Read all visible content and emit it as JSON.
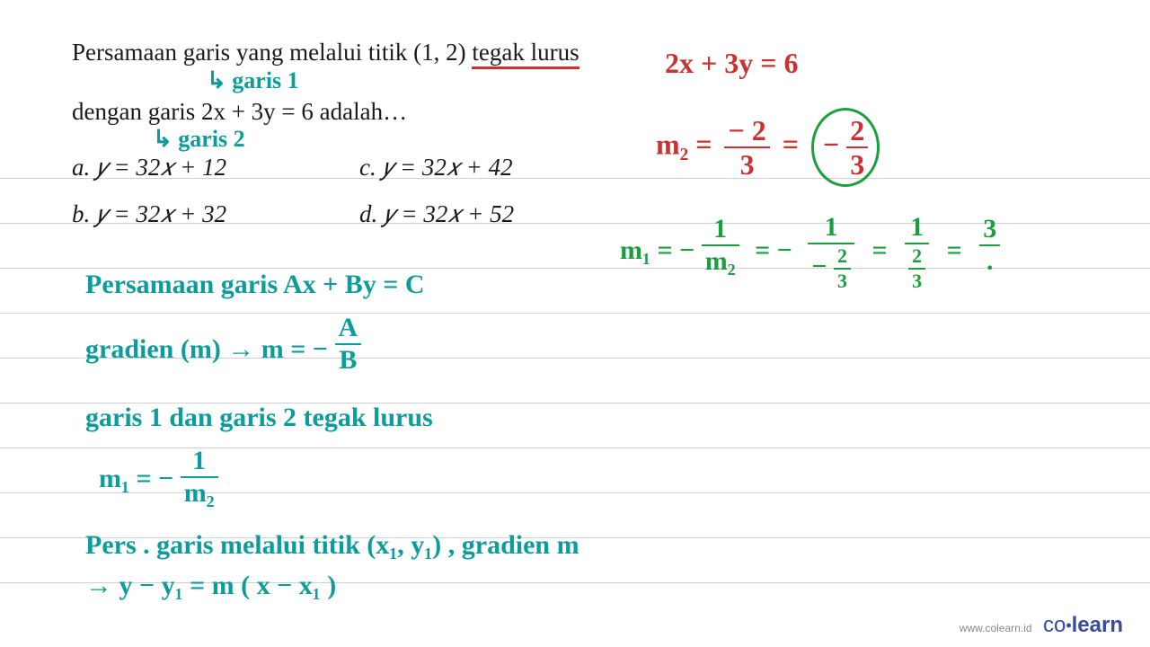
{
  "ruled_lines_y": [
    198,
    248,
    298,
    348,
    398,
    448,
    498,
    548,
    598,
    648
  ],
  "ruled_line_color": "#d0d0d0",
  "problem": {
    "line1_pre": "Persamaan garis yang melalui titik (1, 2) ",
    "line1_underlined": "tegak lurus",
    "annot1": "↳ garis 1",
    "line2": "dengan garis 2x + 3y = 6 adalah…",
    "annot2": "↳ garis  2",
    "opt_a": "a. 𝑦 = 32𝑥 + 12",
    "opt_b": "b. 𝑦 = 32𝑥 + 32",
    "opt_c": "c. 𝑦 = 32𝑥 + 42",
    "opt_d": "d. 𝑦 = 32𝑥 + 52"
  },
  "work_right": {
    "eq1": "2x + 3y  = 6",
    "m2_label": "m₂ =",
    "m2_frac_num": "− 2",
    "m2_frac_den": "3",
    "eq_sign": "=",
    "circ_neg": "−",
    "circ_num": "2",
    "circ_den": "3",
    "m1_line": "m₁ = −",
    "m1_num1": "1",
    "m1_den1": "m₂",
    "eq2": "=  −",
    "m1_num2": "1",
    "m1_den2_num": "2",
    "m1_den2_den": "3",
    "m1_den2_neg": "−",
    "eq3": "=",
    "m1_num3": "1",
    "m1_den3_num": "2",
    "m1_den3_den": "3",
    "eq4": "=",
    "m1_final_num": "3",
    "m1_final_dot": "."
  },
  "work_left": {
    "l1": "Persamaan  garis   Ax + By = C",
    "l2a": "gradien (m)  →   m =  −",
    "l2_num": "A",
    "l2_den": "B",
    "l3": "garis  1  dan  garis  2  tegak  lurus",
    "l4a": "m₁  =  −",
    "l4_num": "1",
    "l4_den": "m₂",
    "l5": "Pers .  garis  melalui  titik  (x₁, y₁)  , gradien  m",
    "l6": "→ y − y₁ =  m ( x − x₁ )"
  },
  "footer": {
    "url": "www.colearn.id",
    "logo_co": "co",
    "logo_dot": "•",
    "logo_learn": "learn"
  },
  "colors": {
    "text": "#1a1a1a",
    "teal": "#0d9c9c",
    "red": "#c83232",
    "green": "#1a9e3e",
    "logo": "#3a4a9e"
  }
}
